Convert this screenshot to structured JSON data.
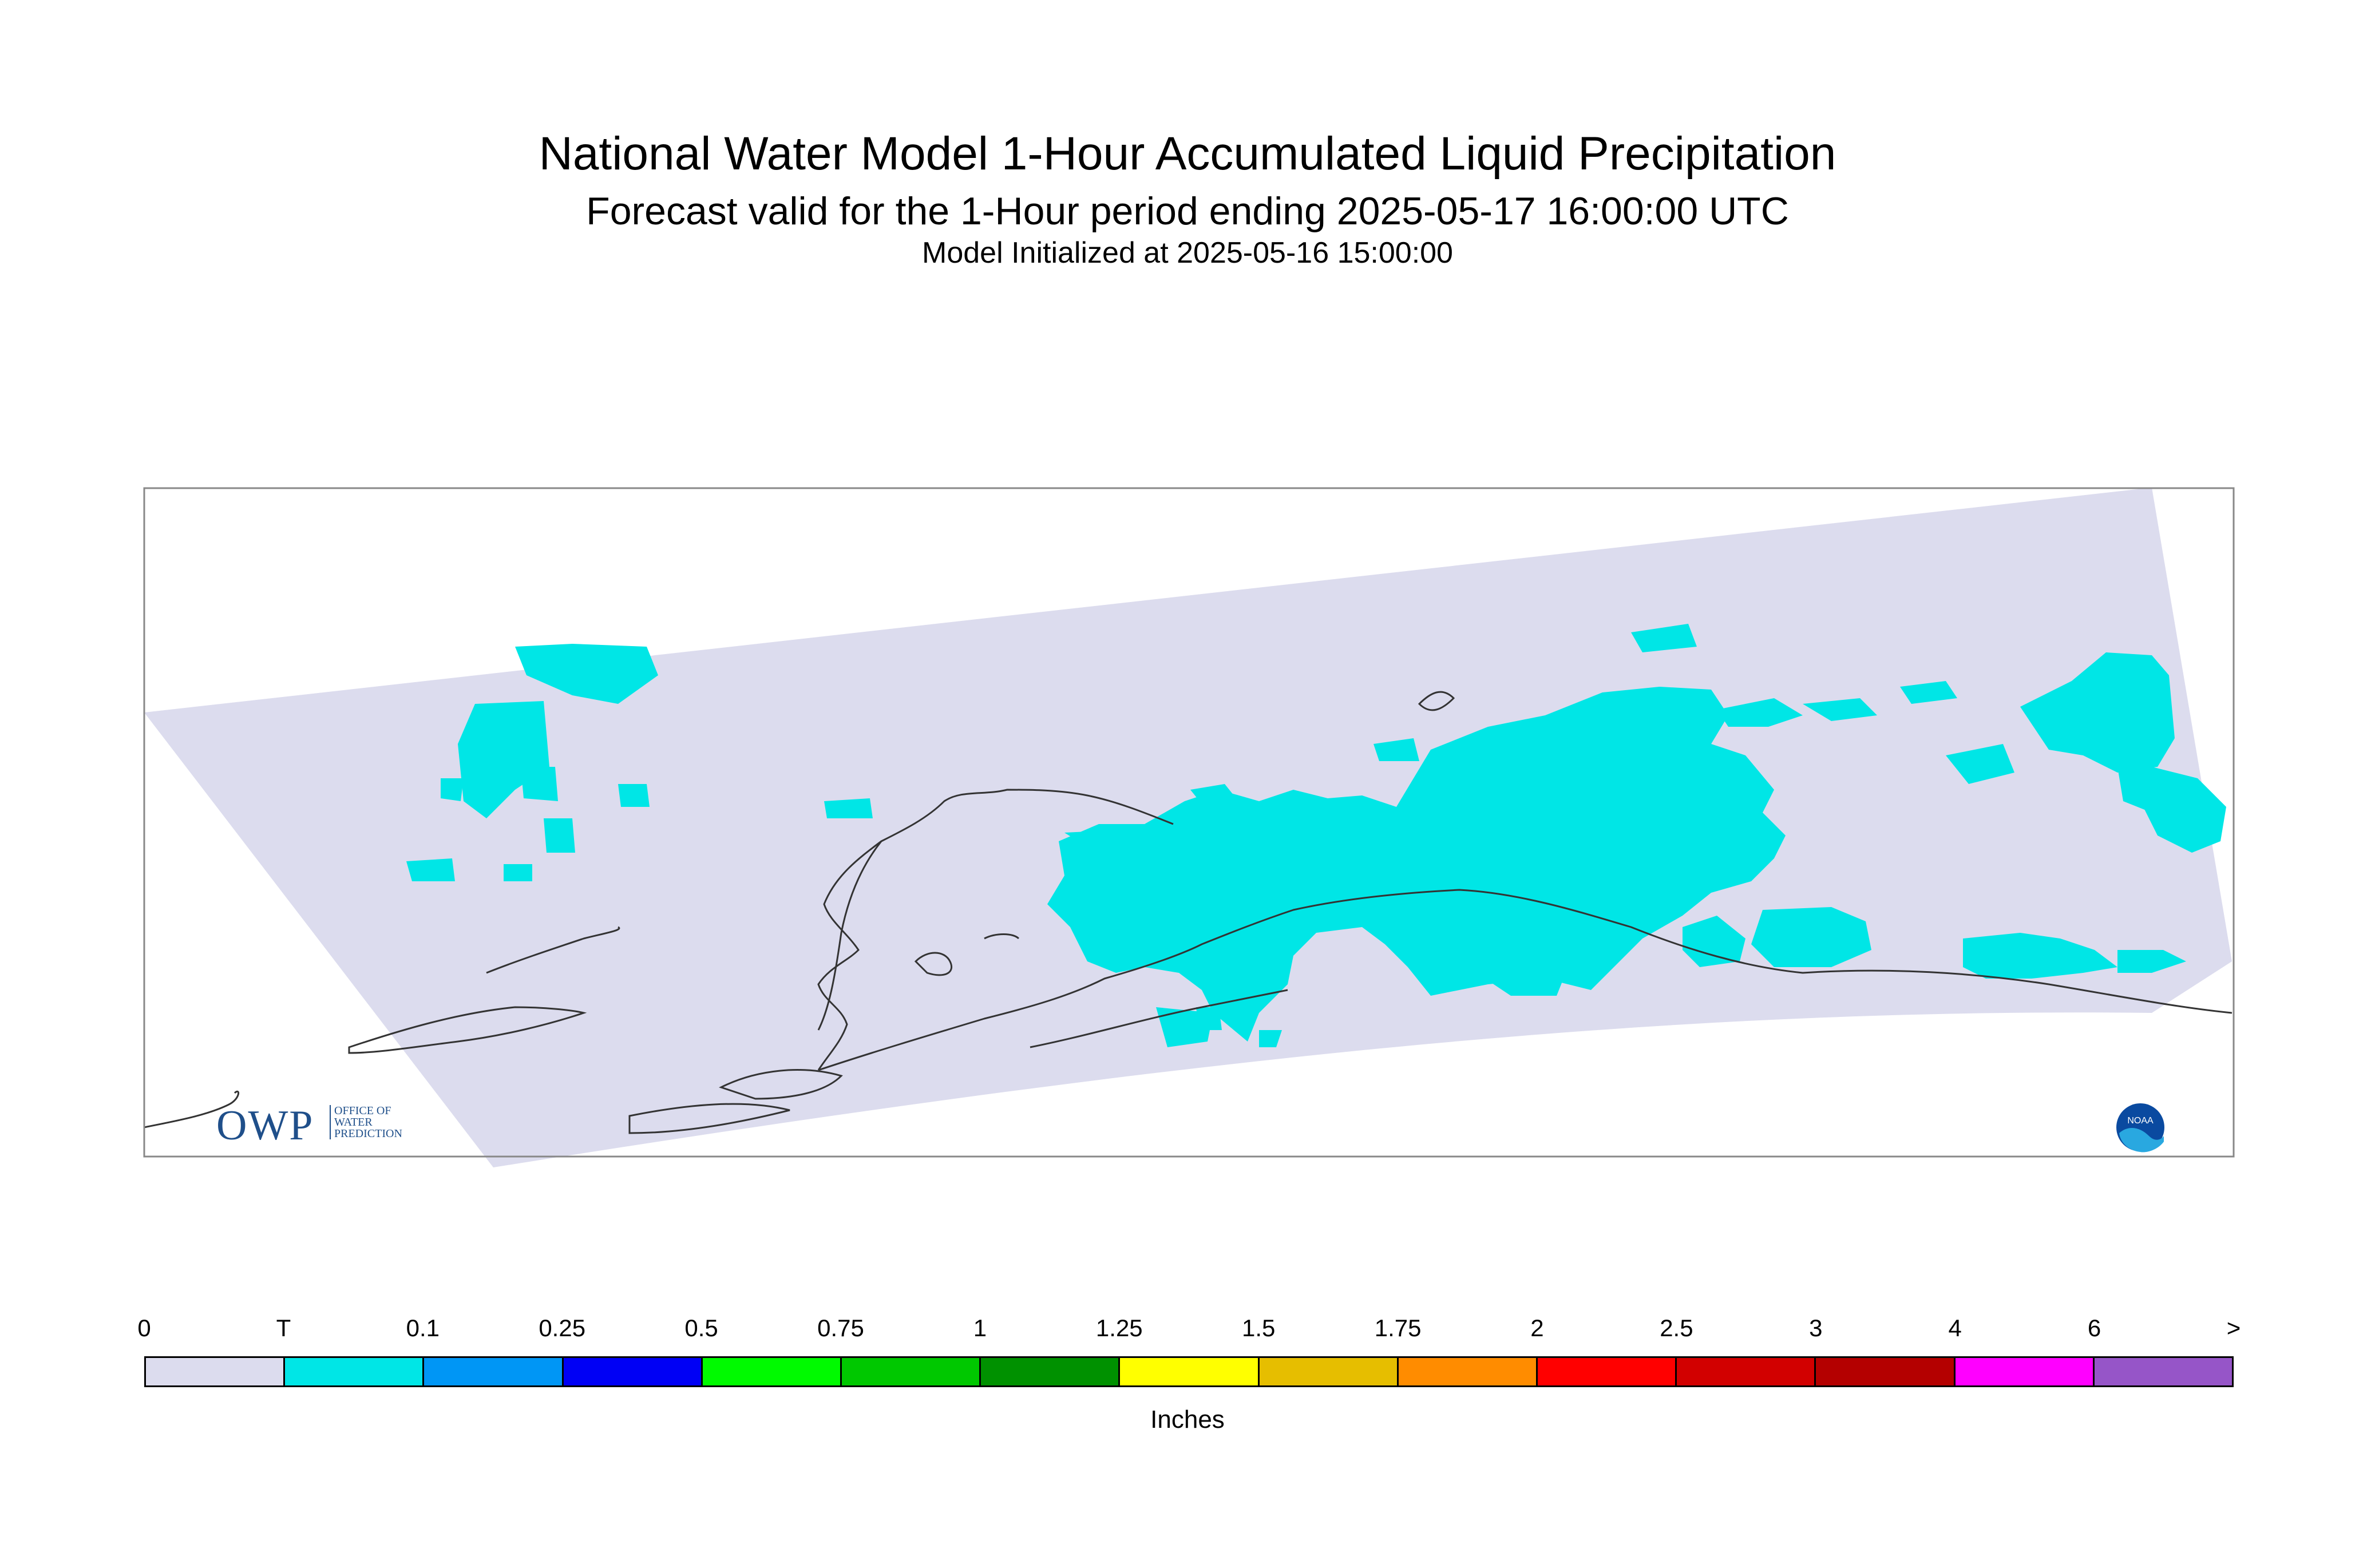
{
  "header": {
    "title": "National Water Model 1-Hour Accumulated Liquid Precipitation",
    "subtitle": "Forecast valid for the 1-Hour period ending 2025-05-17 16:00:00 UTC",
    "init": "Model Initialized at 2025-05-16 15:00:00"
  },
  "map": {
    "domain_fill": "#dcdcee",
    "precip_fill": "#00e6e6",
    "coast_color": "#333333",
    "frame_color": "#888888"
  },
  "logos": {
    "owp_big": "OWP",
    "owp_small": [
      "OFFICE OF",
      "WATER",
      "PREDICTION"
    ],
    "noaa": "NOAA"
  },
  "legend": {
    "ticks": [
      "0",
      "T",
      "0.1",
      "0.25",
      "0.5",
      "0.75",
      "1",
      "1.25",
      "1.5",
      "1.75",
      "2",
      "2.5",
      "3",
      "4",
      "6",
      ">"
    ],
    "colors": [
      "#dcdcee",
      "#00e6e6",
      "#0096f5",
      "#0000f5",
      "#00fa00",
      "#00c800",
      "#009100",
      "#ffff00",
      "#e6be00",
      "#ff8c00",
      "#ff0000",
      "#d20000",
      "#b40000",
      "#ff00ff",
      "#9655c8"
    ],
    "unit_label": "Inches"
  }
}
